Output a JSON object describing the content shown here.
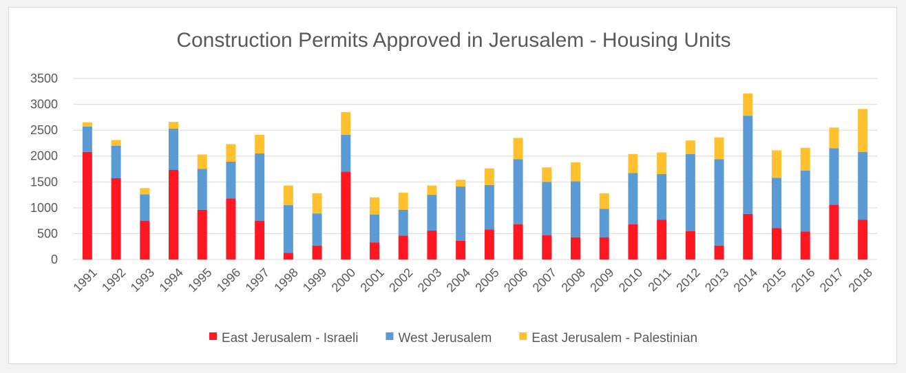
{
  "chart_data": {
    "type": "bar",
    "stacked": true,
    "title": "Construction Permits Approved in Jerusalem - Housing Units",
    "xlabel": "",
    "ylabel": "",
    "ylim": [
      0,
      3500
    ],
    "yticks": [
      0,
      500,
      1000,
      1500,
      2000,
      2500,
      3000,
      3500
    ],
    "ytick_labels": [
      "0",
      "500",
      "1000",
      "1500",
      "2000",
      "2500",
      "3000",
      "3500"
    ],
    "grid": true,
    "legend_position": "bottom",
    "categories": [
      "1991",
      "1992",
      "1993",
      "1994",
      "1995",
      "1996",
      "1997",
      "1998",
      "1999",
      "2000",
      "2001",
      "2002",
      "2003",
      "2004",
      "2005",
      "2006",
      "2007",
      "2008",
      "2009",
      "2010",
      "2011",
      "2012",
      "2013",
      "2014",
      "2015",
      "2016",
      "2017",
      "2018"
    ],
    "series": [
      {
        "name": "East Jerusalem - Israeli",
        "color": "#ff1721",
        "values": [
          2080,
          1570,
          750,
          1730,
          960,
          1180,
          750,
          130,
          270,
          1700,
          330,
          460,
          560,
          360,
          580,
          680,
          470,
          430,
          430,
          680,
          770,
          550,
          270,
          880,
          610,
          540,
          1060,
          770
        ]
      },
      {
        "name": "West Jerusalem",
        "color": "#5b9bd5",
        "values": [
          490,
          630,
          510,
          800,
          790,
          710,
          1300,
          920,
          620,
          710,
          540,
          500,
          690,
          1050,
          860,
          1260,
          1030,
          1080,
          550,
          990,
          880,
          1490,
          1670,
          1900,
          970,
          1180,
          1090,
          1310
        ]
      },
      {
        "name": "East Jerusalem - Palestinian",
        "color": "#ffc12e",
        "values": [
          80,
          110,
          120,
          130,
          280,
          340,
          360,
          380,
          390,
          440,
          330,
          330,
          180,
          130,
          320,
          410,
          280,
          370,
          300,
          370,
          420,
          260,
          420,
          430,
          530,
          440,
          400,
          830
        ]
      }
    ]
  }
}
